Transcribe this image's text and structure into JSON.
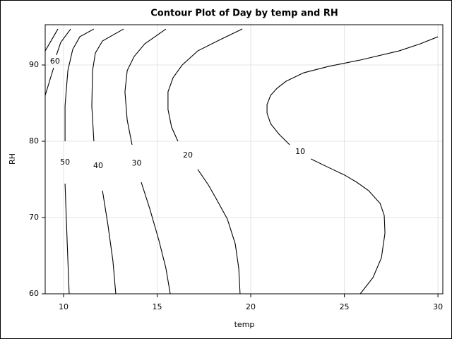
{
  "chart_data": {
    "type": "contour",
    "title": "Contour Plot of Day by temp and RH",
    "xlabel": "temp",
    "ylabel": "RH",
    "xlim": [
      9.02,
      30.26
    ],
    "ylim": [
      60,
      95.28
    ],
    "xticks": [
      10,
      15,
      20,
      25,
      30
    ],
    "yticks": [
      60,
      70,
      80,
      90
    ],
    "grid": true,
    "color": "#000000",
    "series": [
      {
        "name": "10",
        "x": [
          25.85,
          26.53,
          26.98,
          27.17,
          27.13,
          26.91,
          26.3,
          25.66,
          25.02,
          24.15,
          23.21,
          null,
          22.08,
          21.51,
          21.06,
          20.87,
          20.87,
          21.06,
          21.4,
          21.89,
          22.83,
          24.15,
          25.85,
          27.92,
          29.06,
          30.0
        ],
        "y": [
          60,
          62.13,
          64.72,
          67.96,
          70.28,
          71.85,
          73.52,
          74.63,
          75.56,
          76.57,
          77.69,
          null,
          79.54,
          80.93,
          82.31,
          83.7,
          84.81,
          86.02,
          86.94,
          87.87,
          88.98,
          89.81,
          90.65,
          91.85,
          92.78,
          93.7
        ]
      },
      {
        "name": "20",
        "x": [
          19.43,
          19.36,
          19.17,
          18.75,
          18.23,
          17.74,
          17.17,
          null,
          16.11,
          15.77,
          15.58,
          15.58,
          15.85,
          16.34,
          17.17,
          18.3,
          19.55
        ],
        "y": [
          60,
          63.33,
          66.57,
          69.81,
          72.13,
          74.26,
          76.3,
          null,
          80,
          81.85,
          84.17,
          86.48,
          88.33,
          90,
          91.85,
          93.24,
          94.72
        ]
      },
      {
        "name": "30",
        "x": [
          15.7,
          15.47,
          15.09,
          14.6,
          14.15,
          null,
          13.66,
          13.4,
          13.28,
          13.4,
          13.77,
          14.34,
          15.47
        ],
        "y": [
          60,
          63.33,
          67.04,
          71.2,
          74.63,
          null,
          79.54,
          82.78,
          86.48,
          89.26,
          91.11,
          92.78,
          94.72
        ]
      },
      {
        "name": "40",
        "x": [
          12.79,
          12.64,
          12.38,
          12.08,
          null,
          11.62,
          11.51,
          11.55,
          11.7,
          12.08,
          13.21
        ],
        "y": [
          60,
          64.26,
          68.89,
          73.52,
          null,
          80,
          84.63,
          89.26,
          91.57,
          93.15,
          94.72
        ]
      },
      {
        "name": "50",
        "x": [
          10.3,
          10.19,
          10.08,
          null,
          10.08,
          10.08,
          10.23,
          10.49,
          10.87,
          11.62
        ],
        "y": [
          60,
          67.04,
          74.44,
          null,
          80,
          84.63,
          89.26,
          92.04,
          93.7,
          94.72
        ]
      },
      {
        "name": "60",
        "x": [
          9.02,
          9.25,
          9.47,
          null,
          9.62,
          9.85,
          10.38
        ],
        "y": [
          86.02,
          87.87,
          89.63,
          null,
          91.3,
          92.96,
          94.72
        ]
      },
      {
        "name": null,
        "x": [
          9.02,
          9.7
        ],
        "y": [
          91.85,
          94.72
        ]
      }
    ]
  }
}
